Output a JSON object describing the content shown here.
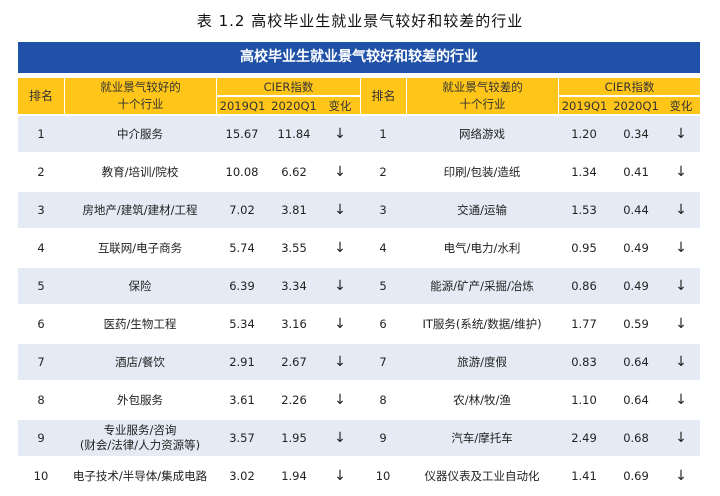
{
  "title": "表 1.2  高校毕业生就业景气较好和较差的行业",
  "banner": "高校毕业生就业景气较好和较差的行业",
  "header": {
    "rank": "排名",
    "good_industry_line1": "就业景气较好的",
    "good_industry_line2": "十个行业",
    "bad_industry_line1": "就业景气较差的",
    "bad_industry_line2": "十个行业",
    "cier": "CIER指数",
    "q2019": "2019Q1",
    "q2020": "2020Q1",
    "change": "变化"
  },
  "rows": [
    {
      "rank": "1",
      "good": "中介服务",
      "g2019": "15.67",
      "g2020": "11.84",
      "gchg": "↓",
      "rank2": "1",
      "bad": "网络游戏",
      "b2019": "1.20",
      "b2020": "0.34",
      "bchg": "↓"
    },
    {
      "rank": "2",
      "good": "教育/培训/院校",
      "g2019": "10.08",
      "g2020": "6.62",
      "gchg": "↓",
      "rank2": "2",
      "bad": "印刷/包装/造纸",
      "b2019": "1.34",
      "b2020": "0.41",
      "bchg": "↓"
    },
    {
      "rank": "3",
      "good": "房地产/建筑/建材/工程",
      "g2019": "7.02",
      "g2020": "3.81",
      "gchg": "↓",
      "rank2": "3",
      "bad": "交通/运输",
      "b2019": "1.53",
      "b2020": "0.44",
      "bchg": "↓"
    },
    {
      "rank": "4",
      "good": "互联网/电子商务",
      "g2019": "5.74",
      "g2020": "3.55",
      "gchg": "↓",
      "rank2": "4",
      "bad": "电气/电力/水利",
      "b2019": "0.95",
      "b2020": "0.49",
      "bchg": "↓"
    },
    {
      "rank": "5",
      "good": "保险",
      "g2019": "6.39",
      "g2020": "3.34",
      "gchg": "↓",
      "rank2": "5",
      "bad": "能源/矿产/采掘/冶炼",
      "b2019": "0.86",
      "b2020": "0.49",
      "bchg": "↓"
    },
    {
      "rank": "6",
      "good": "医药/生物工程",
      "g2019": "5.34",
      "g2020": "3.16",
      "gchg": "↓",
      "rank2": "6",
      "bad": "IT服务(系统/数据/维护)",
      "b2019": "1.77",
      "b2020": "0.59",
      "bchg": "↓"
    },
    {
      "rank": "7",
      "good": "酒店/餐饮",
      "g2019": "2.91",
      "g2020": "2.67",
      "gchg": "↓",
      "rank2": "7",
      "bad": "旅游/度假",
      "b2019": "0.83",
      "b2020": "0.64",
      "bchg": "↓"
    },
    {
      "rank": "8",
      "good": "外包服务",
      "g2019": "3.61",
      "g2020": "2.26",
      "gchg": "↓",
      "rank2": "8",
      "bad": "农/林/牧/渔",
      "b2019": "1.10",
      "b2020": "0.64",
      "bchg": "↓"
    },
    {
      "rank": "9",
      "good": "专业服务/咨询",
      "good_line2": "(财会/法律/人力资源等)",
      "g2019": "3.57",
      "g2020": "1.95",
      "gchg": "↓",
      "rank2": "9",
      "bad": "汽车/摩托车",
      "b2019": "2.49",
      "b2020": "0.68",
      "bchg": "↓"
    },
    {
      "rank": "10",
      "good": "电子技术/半导体/集成电路",
      "g2019": "3.02",
      "g2020": "1.94",
      "gchg": "↓",
      "rank2": "10",
      "bad": "仪器仪表及工业自动化",
      "b2019": "1.41",
      "b2020": "0.69",
      "bchg": "↓"
    }
  ]
}
